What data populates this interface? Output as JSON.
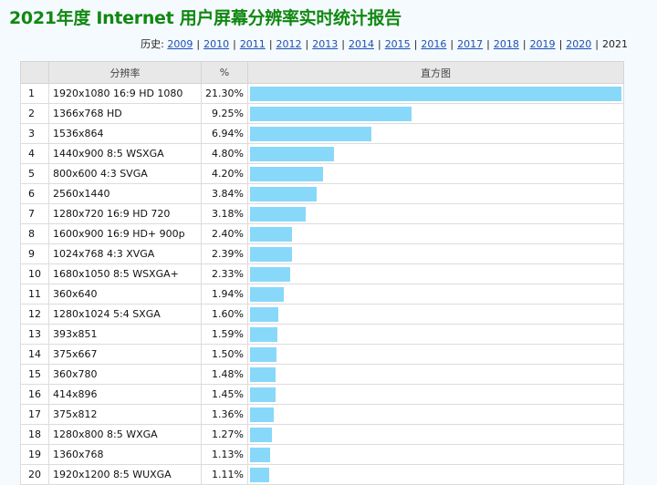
{
  "title": "2021年度 Internet 用户屏幕分辨率实时统计报告",
  "history": {
    "label": "历史:",
    "links": [
      "2009",
      "2010",
      "2011",
      "2012",
      "2013",
      "2014",
      "2015",
      "2016",
      "2017",
      "2018",
      "2019",
      "2020"
    ],
    "current": "2021"
  },
  "table": {
    "headers": [
      "",
      "分辨率",
      "%",
      "直方图"
    ],
    "bar_color": "#88d8fa",
    "rows": [
      {
        "rank": "1",
        "name": "1920x1080 16:9 HD 1080",
        "pct": "21.30%",
        "value": 21.3
      },
      {
        "rank": "2",
        "name": "1366x768 HD",
        "pct": "9.25%",
        "value": 9.25
      },
      {
        "rank": "3",
        "name": "1536x864",
        "pct": "6.94%",
        "value": 6.94
      },
      {
        "rank": "4",
        "name": "1440x900 8:5 WSXGA",
        "pct": "4.80%",
        "value": 4.8
      },
      {
        "rank": "5",
        "name": "800x600 4:3 SVGA",
        "pct": "4.20%",
        "value": 4.2
      },
      {
        "rank": "6",
        "name": "2560x1440",
        "pct": "3.84%",
        "value": 3.84
      },
      {
        "rank": "7",
        "name": "1280x720 16:9 HD 720",
        "pct": "3.18%",
        "value": 3.18
      },
      {
        "rank": "8",
        "name": "1600x900 16:9 HD+ 900p",
        "pct": "2.40%",
        "value": 2.4
      },
      {
        "rank": "9",
        "name": "1024x768 4:3 XVGA",
        "pct": "2.39%",
        "value": 2.39
      },
      {
        "rank": "10",
        "name": "1680x1050 8:5 WSXGA+",
        "pct": "2.33%",
        "value": 2.33
      },
      {
        "rank": "11",
        "name": "360x640",
        "pct": "1.94%",
        "value": 1.94
      },
      {
        "rank": "12",
        "name": "1280x1024 5:4 SXGA",
        "pct": "1.60%",
        "value": 1.6
      },
      {
        "rank": "13",
        "name": "393x851",
        "pct": "1.59%",
        "value": 1.59
      },
      {
        "rank": "14",
        "name": "375x667",
        "pct": "1.50%",
        "value": 1.5
      },
      {
        "rank": "15",
        "name": "360x780",
        "pct": "1.48%",
        "value": 1.48
      },
      {
        "rank": "16",
        "name": "414x896",
        "pct": "1.45%",
        "value": 1.45
      },
      {
        "rank": "17",
        "name": "375x812",
        "pct": "1.36%",
        "value": 1.36
      },
      {
        "rank": "18",
        "name": "1280x800 8:5 WXGA",
        "pct": "1.27%",
        "value": 1.27
      },
      {
        "rank": "19",
        "name": "1360x768",
        "pct": "1.13%",
        "value": 1.13
      },
      {
        "rank": "20",
        "name": "1920x1200 8:5 WUXGA",
        "pct": "1.11%",
        "value": 1.11
      }
    ]
  }
}
